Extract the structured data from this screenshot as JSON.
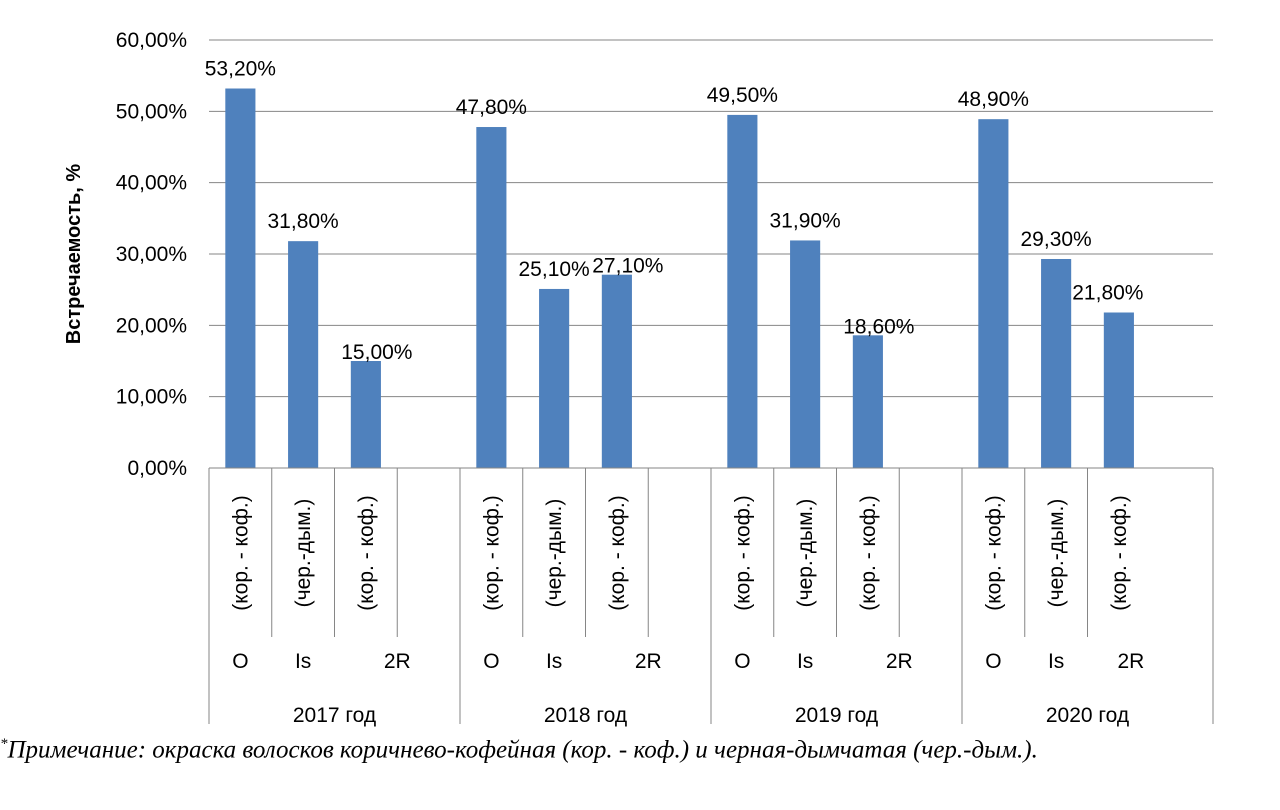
{
  "chart_data": {
    "type": "bar",
    "ylabel": "Встречаемость, %",
    "ylim": [
      0,
      60
    ],
    "yticks": [
      "0,00%",
      "10,00%",
      "20,00%",
      "30,00%",
      "40,00%",
      "50,00%",
      "60,00%"
    ],
    "grid": true,
    "bar_color": "#4f81bd",
    "groups": [
      {
        "year": "2017 год",
        "items": [
          {
            "code": "O",
            "color": "(кор. - коф.)",
            "value": 53.2,
            "label": "53,20%"
          },
          {
            "code": "Is",
            "color": "(чер.-дым.)",
            "value": 31.8,
            "label": "31,80%"
          },
          {
            "code": "2R",
            "color": "(кор. - коф.)",
            "value": 15.0,
            "label": "15,00%"
          }
        ]
      },
      {
        "year": "2018 год",
        "items": [
          {
            "code": "O",
            "color": "(кор. - коф.)",
            "value": 47.8,
            "label": "47,80%"
          },
          {
            "code": "Is",
            "color": "(чер.-дым.)",
            "value": 25.1,
            "label": "25,10%"
          },
          {
            "code": "2R",
            "color": "(кор. - коф.)",
            "value": 27.1,
            "label": "27,10%"
          }
        ]
      },
      {
        "year": "2019 год",
        "items": [
          {
            "code": "O",
            "color": "(кор. - коф.)",
            "value": 49.5,
            "label": "49,50%"
          },
          {
            "code": "Is",
            "color": "(чер.-дым.)",
            "value": 31.9,
            "label": "31,90%"
          },
          {
            "code": "2R",
            "color": "(кор. - коф.)",
            "value": 18.6,
            "label": "18,60%"
          }
        ]
      },
      {
        "year": "2020 год",
        "items": [
          {
            "code": "O",
            "color": "(кор. - коф.)",
            "value": 48.9,
            "label": "48,90%"
          },
          {
            "code": "Is",
            "color": "(чер.-дым.)",
            "value": 29.3,
            "label": "29,30%"
          },
          {
            "code": "2R",
            "color": "(кор. - коф.)",
            "value": 21.8,
            "label": "21,80%"
          }
        ]
      }
    ]
  },
  "note": {
    "marker": "*",
    "text": "Примечание: окраска волосков коричнево-кофейная (кор. - коф.) и черная-дымчатая (чер.-дым.)."
  }
}
